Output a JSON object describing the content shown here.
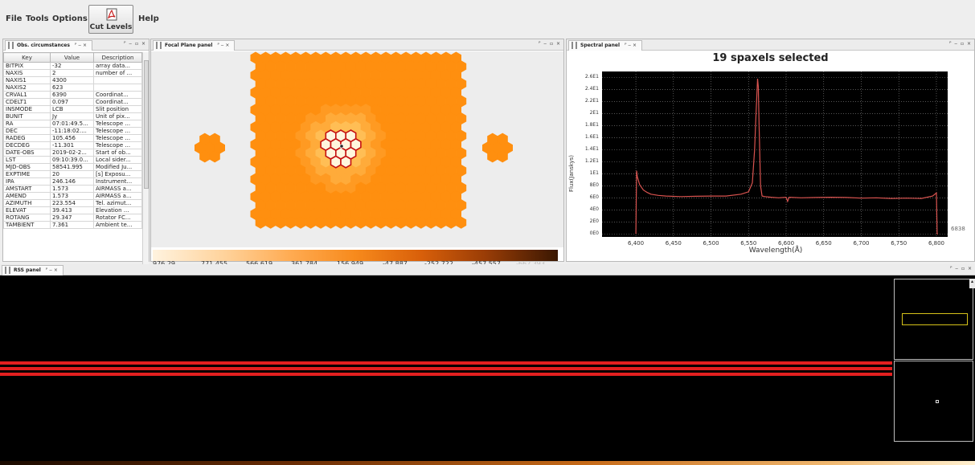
{
  "menu": {
    "file": "File",
    "tools": "Tools",
    "options": "Options",
    "cut_levels": "Cut Levels",
    "help": "Help"
  },
  "obs_panel": {
    "tab_title": "Obs. circumstances",
    "columns": [
      "Key",
      "Value",
      "Description"
    ],
    "rows": [
      [
        "BITPIX",
        "-32",
        "array data..."
      ],
      [
        "NAXIS",
        "2",
        "number of ..."
      ],
      [
        "NAXIS1",
        "4300",
        ""
      ],
      [
        "NAXIS2",
        "623",
        ""
      ],
      [
        "CRVAL1",
        "6390",
        "Coordinat..."
      ],
      [
        "CDELT1",
        "0.097",
        "Coordinat..."
      ],
      [
        "INSMODE",
        "LCB",
        "Slit position"
      ],
      [
        "BUNIT",
        "Jy",
        "Unit of pix..."
      ],
      [
        "RA",
        "07:01:49.5...",
        "Telescope ..."
      ],
      [
        "DEC",
        "-11:18:02....",
        "Telescope ..."
      ],
      [
        "RADEG",
        "105.456",
        "Telescope ..."
      ],
      [
        "DECDEG",
        "-11.301",
        "Telescope ..."
      ],
      [
        "DATE-OBS",
        "2019-02-2...",
        "Start of ob..."
      ],
      [
        "LST",
        "09:10:39.0...",
        "Local sider..."
      ],
      [
        "MJD-OBS",
        "58541.995",
        "Modified Ju..."
      ],
      [
        "EXPTIME",
        "20",
        "[s] Exposu..."
      ],
      [
        "IPA",
        "246.146",
        "Instrument..."
      ],
      [
        "AMSTART",
        "1.573",
        "AIRMASS a..."
      ],
      [
        "AMEND",
        "1.573",
        "AIRMASS a..."
      ],
      [
        "AZIMUTH",
        "223.554",
        "Tel. azimut..."
      ],
      [
        "ELEVAT",
        "39.413",
        "Elevation ..."
      ],
      [
        "ROTANG",
        "29.347",
        "Rotator FC..."
      ],
      [
        "TAMBIENT",
        "7.361",
        "Ambient te..."
      ]
    ]
  },
  "focal_panel": {
    "tab_title": "Focal Plane panel",
    "colorbar_labels": [
      "976.29",
      "771.455",
      "566.619",
      "361.784",
      "156.949",
      "-47.887",
      "-252.722",
      "-457.557",
      "-662.393"
    ]
  },
  "spectral_panel": {
    "tab_title": "Spectral panel",
    "title": "19 spaxels selected",
    "overflow_label": "6838",
    "colors": {
      "line": "#d9534f",
      "grid": "#8a8a8a"
    }
  },
  "chart_data": {
    "type": "line",
    "title": "19 spaxels selected",
    "xlabel": "Wavelength(Å)",
    "ylabel": "Flux(Janskys)",
    "xlim": [
      6355,
      6815
    ],
    "ylim": [
      -0.5,
      27
    ],
    "x_ticks": [
      "6,400",
      "6,450",
      "6,500",
      "6,550",
      "6,600",
      "6,650",
      "6,700",
      "6,750",
      "6,800"
    ],
    "x_tick_values": [
      6400,
      6450,
      6500,
      6550,
      6600,
      6650,
      6700,
      6750,
      6800
    ],
    "y_ticks": [
      "0E0",
      "2E0",
      "4E0",
      "6E0",
      "8E0",
      "1E1",
      "1.2E1",
      "1.4E1",
      "1.6E1",
      "1.8E1",
      "2E1",
      "2.2E1",
      "2.4E1",
      "2.6E1"
    ],
    "y_tick_values": [
      0,
      2,
      4,
      6,
      8,
      10,
      12,
      14,
      16,
      18,
      20,
      22,
      24,
      26
    ],
    "grid": true,
    "series": [
      {
        "x": [
          6400,
          6400.5,
          6401,
          6402,
          6405,
          6410,
          6415,
          6420,
          6430,
          6440,
          6460,
          6480,
          6500,
          6520,
          6540,
          6550,
          6555,
          6558,
          6560,
          6562,
          6563,
          6564,
          6566,
          6568,
          6572,
          6580,
          6590,
          6600,
          6602,
          6604,
          6620,
          6640,
          6660,
          6680,
          6700,
          6720,
          6740,
          6760,
          6780,
          6795,
          6800,
          6801,
          6802
        ],
        "y": [
          0,
          5,
          10.5,
          9.5,
          8.2,
          7.3,
          6.9,
          6.6,
          6.4,
          6.3,
          6.2,
          6.25,
          6.3,
          6.3,
          6.6,
          7.0,
          8.5,
          14,
          20,
          25.8,
          24.5,
          18,
          8.0,
          6.3,
          6.2,
          6.1,
          6.0,
          6.1,
          5.4,
          6.1,
          6.0,
          6.05,
          6.1,
          6.05,
          5.95,
          6.0,
          5.9,
          5.95,
          5.9,
          6.3,
          6.8,
          0,
          0
        ]
      }
    ]
  },
  "rss_panel": {
    "tab_title": "RSS panel"
  }
}
